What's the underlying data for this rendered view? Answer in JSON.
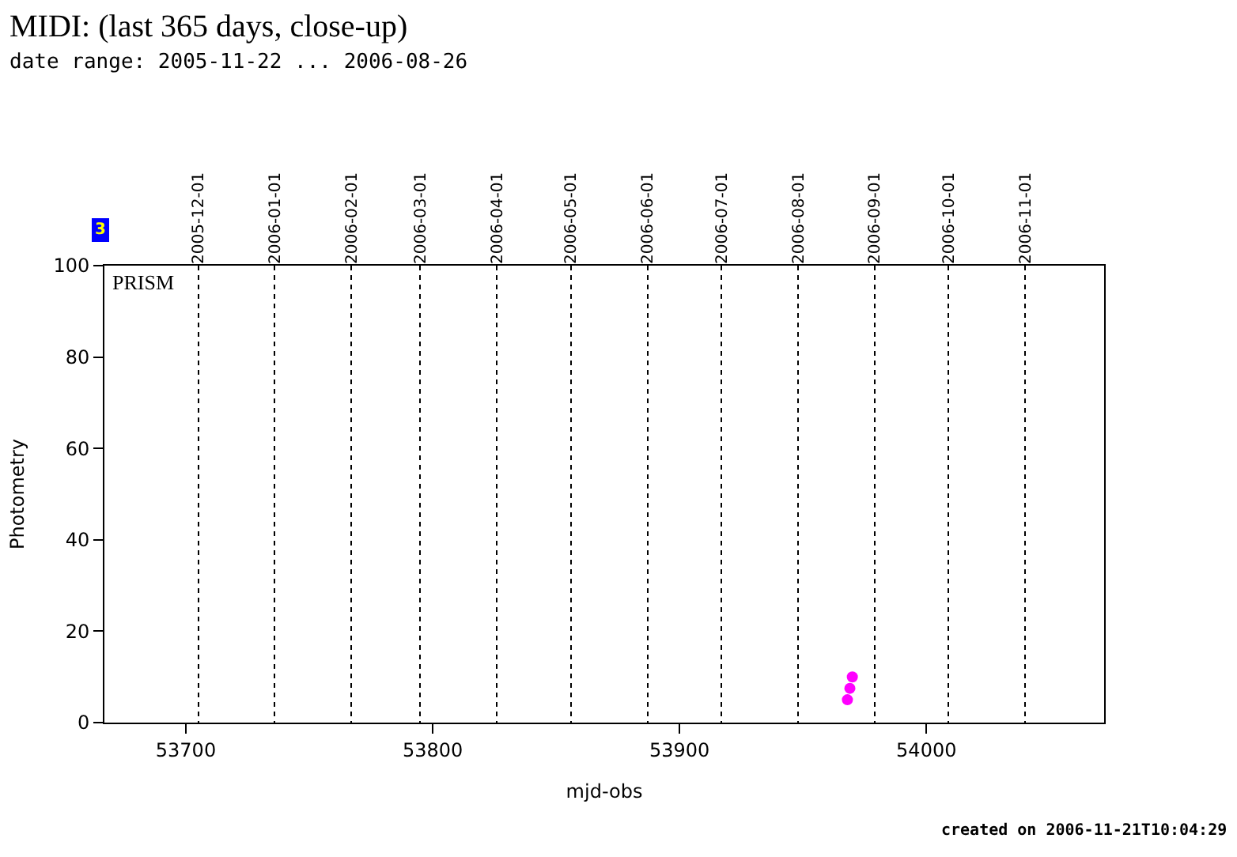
{
  "chart_data": {
    "type": "scatter",
    "title": "MIDI: (last 365 days, close-up)",
    "subtitle": "date range: 2005-11-22 ... 2006-08-26",
    "xlabel": "mjd-obs",
    "ylabel": "Photometry",
    "series": [
      {
        "color": "#ff00ff",
        "x": [
          53968,
          53969,
          53970
        ],
        "values": [
          5,
          7.5,
          10
        ]
      }
    ],
    "marker": "circle",
    "grid": "x",
    "xlim": [
      53667,
      54072
    ],
    "xticks": [
      53700,
      53800,
      53900,
      54000
    ],
    "x2lim": [
      "2005-10-24",
      "2006-12-03"
    ],
    "x2ticks": [
      "2005-12-01",
      "2006-01-01",
      "2006-02-01",
      "2006-03-01",
      "2006-04-01",
      "2006-05-01",
      "2006-06-01",
      "2006-07-01",
      "2006-08-01",
      "2006-09-01",
      "2006-10-01",
      "2006-11-01"
    ],
    "ylim": [
      0,
      100
    ],
    "yticks": [
      0,
      20,
      40,
      60,
      80,
      100
    ],
    "annotations": [
      "PRISM",
      "3",
      "created on 2006-11-21T10:04:29"
    ]
  }
}
